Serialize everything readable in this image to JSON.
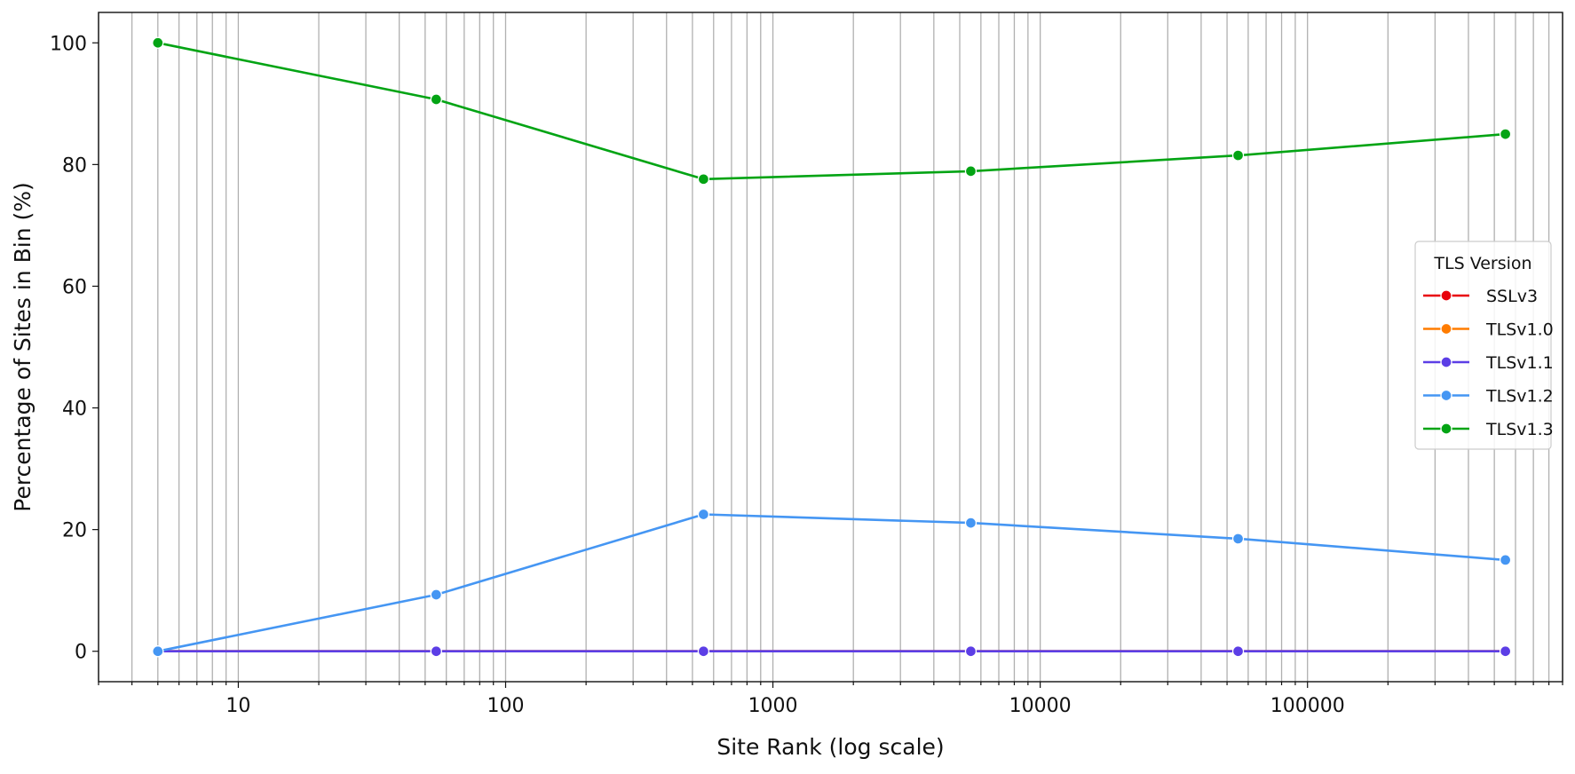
{
  "chart_data": {
    "type": "line",
    "title": "",
    "xlabel": "Site Rank (log scale)",
    "ylabel": "Percentage of Sites in Bin (%)",
    "x_scale": "log",
    "xlim": [
      3,
      900000
    ],
    "ylim": [
      -5,
      105
    ],
    "x_ticks": [
      10,
      100,
      1000,
      10000,
      100000
    ],
    "x_tick_labels": [
      "10",
      "100",
      "1000",
      "10000",
      "100000"
    ],
    "y_ticks": [
      0,
      20,
      40,
      60,
      80,
      100
    ],
    "y_tick_labels": [
      "0",
      "20",
      "40",
      "60",
      "80",
      "100"
    ],
    "grid": "vertical major and minor",
    "legend": {
      "title": "TLS Version",
      "placement": "center-right"
    },
    "x": [
      5,
      55,
      550,
      5500,
      55000,
      550000
    ],
    "series": [
      {
        "name": "SSLv3",
        "color": "#e8000b",
        "values": [
          0,
          0,
          0,
          0,
          0,
          0
        ]
      },
      {
        "name": "TLSv1.0",
        "color": "#ff7c00",
        "values": [
          0,
          0,
          0,
          0,
          0,
          0
        ]
      },
      {
        "name": "TLSv1.1",
        "color": "#5c3ee6",
        "values": [
          0,
          0,
          0,
          0,
          0,
          0
        ]
      },
      {
        "name": "TLSv1.2",
        "color": "#4596f3",
        "values": [
          0,
          9.3,
          22.5,
          21.1,
          18.5,
          15.0
        ]
      },
      {
        "name": "TLSv1.3",
        "color": "#03a414",
        "values": [
          100,
          90.7,
          77.6,
          78.9,
          81.5,
          85.0
        ]
      }
    ]
  }
}
